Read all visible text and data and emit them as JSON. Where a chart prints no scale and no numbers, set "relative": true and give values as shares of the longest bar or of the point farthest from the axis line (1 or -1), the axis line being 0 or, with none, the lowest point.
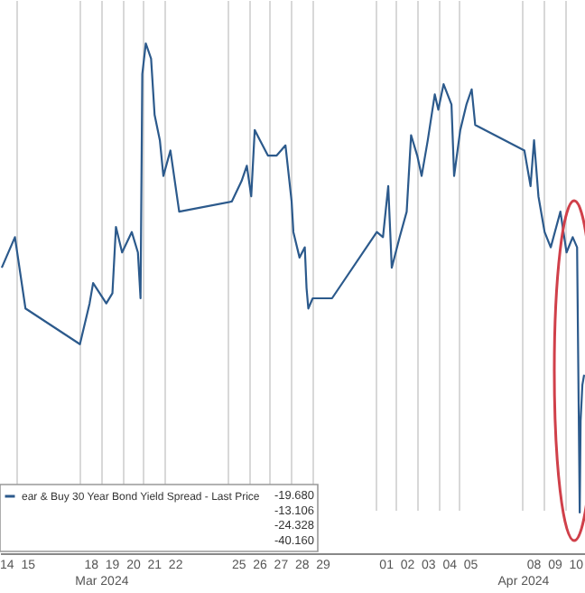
{
  "chart_data": {
    "type": "line",
    "legend": "bottom left",
    "grid": "x",
    "relative": true,
    "series": [
      {
        "name": "ear & Buy 30 Year Bond Yield Spread - Last Price",
        "color": "#2c5a8c",
        "values": [
          0.56,
          0.62,
          0.48,
          0.41,
          0.49,
          0.53,
          0.49,
          0.51,
          0.64,
          0.59,
          0.63,
          0.59,
          0.5,
          0.94,
          1,
          0.97,
          0.86,
          0.81,
          0.74,
          0.79,
          0.67,
          0.69,
          0.73,
          0.76,
          0.7,
          0.83,
          0.81,
          0.78,
          0.78,
          0.8,
          0.69,
          0.63,
          0.58,
          0.6,
          0.52,
          0.48,
          0.5,
          0.5,
          0.63,
          0.62,
          0.72,
          0.56,
          0.62,
          0.67,
          0.82,
          0.78,
          0.74,
          0.81,
          0.9,
          0.87,
          0.92,
          0.88,
          0.74,
          0.83,
          0.88,
          0.91,
          0.84,
          0.79,
          0.72,
          0.81,
          0.7,
          0.63,
          0.6,
          0.67,
          0.59,
          0.62,
          0.6,
          0.08,
          0.26,
          0.33,
          0.35
        ]
      }
    ],
    "x": [
      "2024-03-14T07:00",
      "2024-03-14T22:00",
      "2024-03-15T10:00",
      "2024-03-18T00:00",
      "2024-03-18T11:00",
      "2024-03-18T15:00",
      "2024-03-19T06:00",
      "2024-03-19T13:00",
      "2024-03-19T17:00",
      "2024-03-20T00:00",
      "2024-03-20T11:00",
      "2024-03-20T18:00",
      "2024-03-20T21:00",
      "2024-03-20T23:00",
      "2024-03-21T03:00",
      "2024-03-21T09:00",
      "2024-03-21T13:00",
      "2024-03-21T19:00",
      "2024-03-21T23:00",
      "2024-03-22T07:00",
      "2024-03-22T17:00",
      "2024-03-25T05:00",
      "2024-03-25T16:00",
      "2024-03-25T22:00",
      "2024-03-26T03:00",
      "2024-03-26T07:00",
      "2024-03-26T13:00",
      "2024-03-26T22:00",
      "2024-03-27T08:00",
      "2024-03-27T18:00",
      "2024-03-28T01:00",
      "2024-03-28T03:00",
      "2024-03-28T10:00",
      "2024-03-28T16:00",
      "2024-03-28T18:00",
      "2024-03-28T20:00",
      "2024-03-29T01:00",
      "2024-03-29T23:00",
      "2024-04-01T02:00",
      "2024-04-01T09:00",
      "2024-04-01T15:00",
      "2024-04-01T19:00",
      "2024-04-02T04:00",
      "2024-04-02T12:00",
      "2024-04-02T17:00",
      "2024-04-03T00:00",
      "2024-04-03T05:00",
      "2024-04-03T12:00",
      "2024-04-03T20:00",
      "2024-04-04T00:00",
      "2024-04-04T06:00",
      "2024-04-04T15:00",
      "2024-04-04T18:00",
      "2024-04-05T01:00",
      "2024-04-05T08:00",
      "2024-04-05T14:00",
      "2024-04-05T18:00",
      "2024-04-08T02:00",
      "2024-04-08T09:00",
      "2024-04-08T13:00",
      "2024-04-08T18:00",
      "2024-04-09T01:00",
      "2024-04-09T08:00",
      "2024-04-09T19:00",
      "2024-04-10T02:00",
      "2024-04-10T09:00",
      "2024-04-10T14:00",
      "2024-04-10T17:00",
      "2024-04-10T18:00",
      "2024-04-10T20:00",
      "2024-04-10T22:00"
    ],
    "xlim": [
      "2024-03-14T05:00",
      "2024-04-10T23:00"
    ],
    "xticks": [
      {
        "value": "2024-03-14T12:00",
        "label": "14"
      },
      {
        "value": "2024-03-15T12:00",
        "label": "15"
      },
      {
        "value": "2024-03-18T12:00",
        "label": "18"
      },
      {
        "value": "2024-03-19T12:00",
        "label": "19"
      },
      {
        "value": "2024-03-20T12:00",
        "label": "20"
      },
      {
        "value": "2024-03-21T12:00",
        "label": "21"
      },
      {
        "value": "2024-03-22T12:00",
        "label": "22"
      },
      {
        "value": "2024-03-25T12:00",
        "label": "25"
      },
      {
        "value": "2024-03-26T12:00",
        "label": "26"
      },
      {
        "value": "2024-03-27T12:00",
        "label": "27"
      },
      {
        "value": "2024-03-28T12:00",
        "label": "28"
      },
      {
        "value": "2024-03-29T12:00",
        "label": "29"
      },
      {
        "value": "2024-04-01T12:00",
        "label": "01"
      },
      {
        "value": "2024-04-02T12:00",
        "label": "02"
      },
      {
        "value": "2024-04-03T12:00",
        "label": "03"
      },
      {
        "value": "2024-04-04T12:00",
        "label": "04"
      },
      {
        "value": "2024-04-05T12:00",
        "label": "05"
      },
      {
        "value": "2024-04-08T12:00",
        "label": "08"
      },
      {
        "value": "2024-04-09T12:00",
        "label": "09"
      },
      {
        "value": "2024-04-10T12:00",
        "label": "10"
      },
      {
        "value": "2024-03-15",
        "label": null
      },
      {
        "value": "2024-03-18",
        "label": null
      },
      {
        "value": "2024-03-19",
        "label": null
      },
      {
        "value": "2024-03-20",
        "label": null
      },
      {
        "value": "2024-03-21",
        "label": null
      },
      {
        "value": "2024-03-22",
        "label": null
      },
      {
        "value": "2024-03-25",
        "label": null
      },
      {
        "value": "2024-03-26",
        "label": null
      },
      {
        "value": "2024-03-27",
        "label": null
      },
      {
        "value": "2024-03-28",
        "label": null
      },
      {
        "value": "2024-03-29",
        "label": null
      },
      {
        "value": "2024-04-01",
        "label": null
      },
      {
        "value": "2024-04-02",
        "label": null
      },
      {
        "value": "2024-04-03",
        "label": null
      },
      {
        "value": "2024-04-04",
        "label": null
      },
      {
        "value": "2024-04-05",
        "label": null
      },
      {
        "value": "2024-04-08",
        "label": null
      },
      {
        "value": "2024-04-09",
        "label": null
      },
      {
        "value": "2024-04-10",
        "label": null
      }
    ],
    "x2lim": [
      "2024-03-14T05:00",
      "2024-04-10T23:00"
    ],
    "x2ticks": [
      {
        "value": "2024-03-19",
        "label": "Mar 2024"
      },
      {
        "value": "2024-04-08",
        "label": "Apr 2024"
      }
    ],
    "annotations": [
      "-19.680",
      "-13.106",
      "-24.328",
      "-40.160"
    ]
  }
}
